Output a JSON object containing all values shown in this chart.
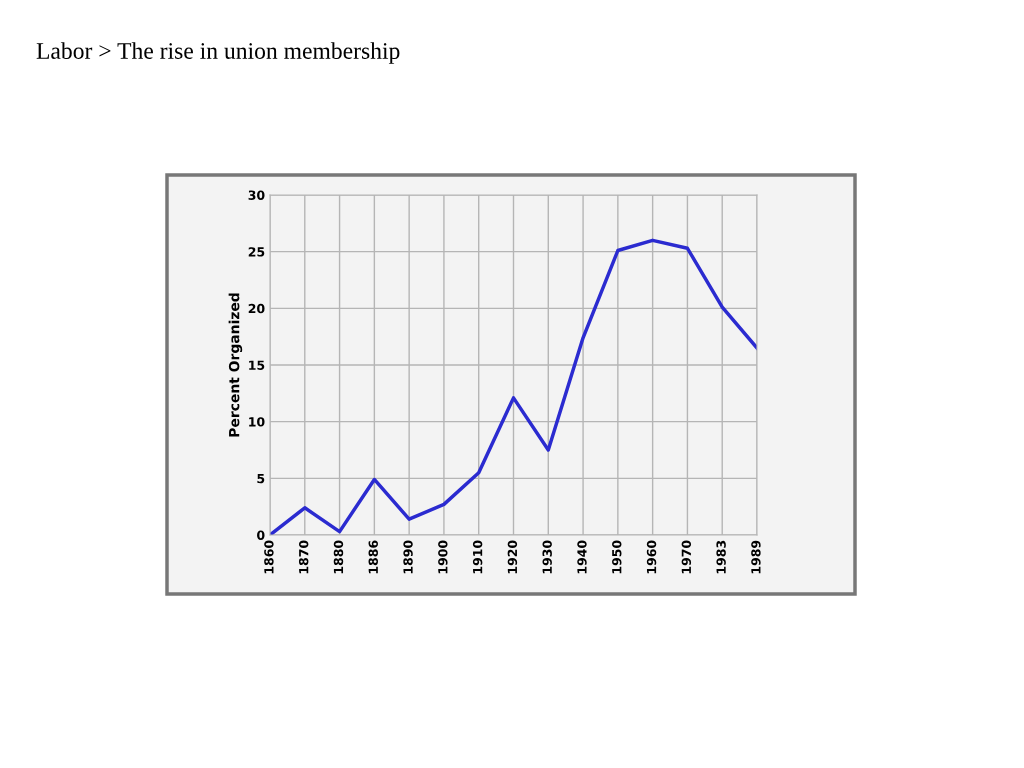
{
  "chart_data": {
    "type": "line",
    "title": "Labor > The rise in union membership",
    "ylabel": "Percent Organized",
    "categories": [
      "1860",
      "1870",
      "1880",
      "1886",
      "1890",
      "1900",
      "1910",
      "1920",
      "1930",
      "1940",
      "1950",
      "1960",
      "1970",
      "1983",
      "1989"
    ],
    "series": [
      {
        "color": "#2b2bd0",
        "values": [
          0,
          2.4,
          0.3,
          4.9,
          1.4,
          2.7,
          5.5,
          12.1,
          7.5,
          17.4,
          25.1,
          26.0,
          25.3,
          20.1,
          16.5
        ]
      }
    ],
    "ylim": [
      0,
      30
    ],
    "yticks": [
      0,
      5,
      10,
      15,
      20,
      25,
      30
    ],
    "grid": true,
    "marker": "none",
    "line_style": "solid"
  }
}
